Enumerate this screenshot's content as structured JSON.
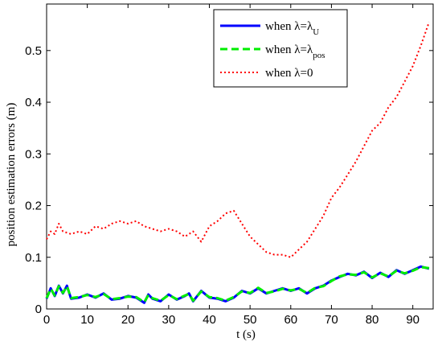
{
  "chart_data": {
    "type": "line",
    "xlabel": "t  (s)",
    "ylabel": "position estimation errors (m)",
    "xlim": [
      0,
      95
    ],
    "ylim": [
      0,
      0.59
    ],
    "xticks": [
      0,
      10,
      20,
      30,
      40,
      50,
      60,
      70,
      80,
      90
    ],
    "yticks": [
      0,
      0.1,
      0.2,
      0.3,
      0.4,
      0.5
    ],
    "xtick_labels": [
      "0",
      "10",
      "20",
      "30",
      "40",
      "50",
      "60",
      "70",
      "80",
      "90"
    ],
    "ytick_labels": [
      "0",
      "0.1",
      "0.2",
      "0.3",
      "0.4",
      "0.5"
    ],
    "grid": false,
    "legend_position": "top-right",
    "legend": [
      {
        "prefix": "when λ=λ",
        "sub": "U"
      },
      {
        "prefix": "when λ=λ",
        "sub": "pos"
      },
      {
        "prefix": "when λ=0",
        "sub": ""
      }
    ],
    "series": [
      {
        "color": "#0000ff",
        "style": "solid",
        "x": [
          0,
          1,
          2,
          3,
          4,
          5,
          6,
          8,
          10,
          12,
          14,
          16,
          18,
          20,
          22,
          24,
          25,
          26,
          28,
          30,
          32,
          34,
          35,
          36,
          38,
          40,
          42,
          44,
          46,
          48,
          50,
          52,
          54,
          56,
          58,
          60,
          62,
          64,
          66,
          68,
          70,
          72,
          74,
          76,
          78,
          80,
          82,
          84,
          86,
          88,
          90,
          92,
          94
        ],
        "y": [
          0.02,
          0.04,
          0.025,
          0.045,
          0.03,
          0.045,
          0.02,
          0.022,
          0.028,
          0.022,
          0.03,
          0.018,
          0.02,
          0.025,
          0.022,
          0.012,
          0.028,
          0.02,
          0.015,
          0.028,
          0.018,
          0.025,
          0.03,
          0.015,
          0.035,
          0.022,
          0.02,
          0.015,
          0.022,
          0.035,
          0.03,
          0.04,
          0.03,
          0.035,
          0.04,
          0.035,
          0.04,
          0.03,
          0.04,
          0.045,
          0.055,
          0.062,
          0.068,
          0.065,
          0.072,
          0.06,
          0.07,
          0.062,
          0.075,
          0.068,
          0.075,
          0.082,
          0.078
        ]
      },
      {
        "color": "#00ee00",
        "style": "dashed",
        "x": [
          0,
          1,
          2,
          3,
          4,
          5,
          6,
          8,
          10,
          12,
          14,
          16,
          18,
          20,
          22,
          24,
          25,
          26,
          28,
          30,
          32,
          34,
          35,
          36,
          38,
          40,
          42,
          44,
          46,
          48,
          50,
          52,
          54,
          56,
          58,
          60,
          62,
          64,
          66,
          68,
          70,
          72,
          74,
          76,
          78,
          80,
          82,
          84,
          86,
          88,
          90,
          92,
          94
        ],
        "y": [
          0.021,
          0.039,
          0.026,
          0.044,
          0.031,
          0.044,
          0.021,
          0.023,
          0.027,
          0.023,
          0.029,
          0.019,
          0.021,
          0.024,
          0.023,
          0.013,
          0.027,
          0.021,
          0.016,
          0.027,
          0.019,
          0.026,
          0.029,
          0.016,
          0.034,
          0.023,
          0.021,
          0.016,
          0.023,
          0.034,
          0.031,
          0.041,
          0.031,
          0.034,
          0.039,
          0.036,
          0.039,
          0.031,
          0.041,
          0.044,
          0.054,
          0.063,
          0.067,
          0.066,
          0.071,
          0.061,
          0.069,
          0.063,
          0.074,
          0.069,
          0.074,
          0.081,
          0.079
        ]
      },
      {
        "color": "#ff0000",
        "style": "dotted",
        "x": [
          0,
          1,
          2,
          3,
          4,
          6,
          8,
          10,
          12,
          14,
          16,
          18,
          20,
          22,
          24,
          26,
          28,
          30,
          32,
          34,
          36,
          38,
          40,
          42,
          44,
          46,
          48,
          50,
          52,
          54,
          56,
          58,
          60,
          62,
          64,
          66,
          68,
          70,
          72,
          74,
          76,
          78,
          80,
          82,
          84,
          86,
          88,
          90,
          92,
          94
        ],
        "y": [
          0.135,
          0.15,
          0.145,
          0.165,
          0.15,
          0.145,
          0.15,
          0.145,
          0.16,
          0.155,
          0.165,
          0.17,
          0.165,
          0.17,
          0.16,
          0.155,
          0.15,
          0.155,
          0.15,
          0.14,
          0.15,
          0.13,
          0.16,
          0.17,
          0.185,
          0.19,
          0.165,
          0.14,
          0.125,
          0.11,
          0.105,
          0.105,
          0.1,
          0.115,
          0.13,
          0.155,
          0.18,
          0.215,
          0.235,
          0.26,
          0.285,
          0.315,
          0.345,
          0.36,
          0.39,
          0.41,
          0.44,
          0.47,
          0.51,
          0.555
        ]
      }
    ]
  }
}
